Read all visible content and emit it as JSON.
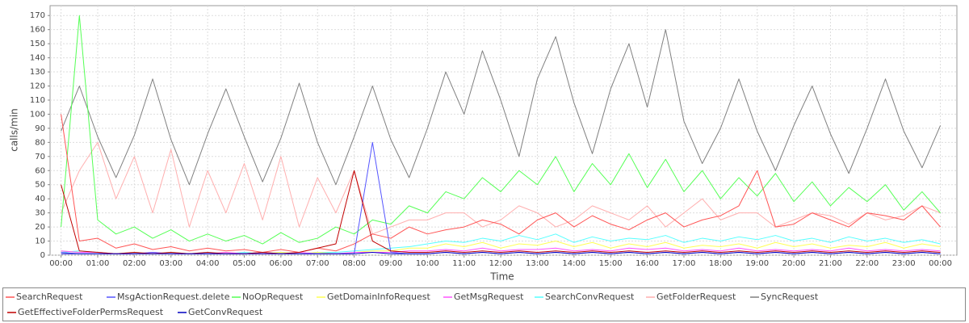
{
  "chart_data": {
    "type": "line",
    "x_label": "Time",
    "y_label": "calls/min",
    "grid": true,
    "legend_position": "bottom",
    "xlim": [
      -0.3,
      24.45
    ],
    "ylim": [
      0,
      177
    ],
    "yticks": [
      0,
      10,
      20,
      30,
      40,
      50,
      60,
      70,
      80,
      90,
      100,
      110,
      120,
      130,
      140,
      150,
      160,
      170
    ],
    "xticks": [
      {
        "value": 0,
        "label": "00:00"
      },
      {
        "value": 1,
        "label": "01:00"
      },
      {
        "value": 2,
        "label": "02:00"
      },
      {
        "value": 3,
        "label": "03:00"
      },
      {
        "value": 4,
        "label": "04:00"
      },
      {
        "value": 5,
        "label": "05:00"
      },
      {
        "value": 6,
        "label": "06:00"
      },
      {
        "value": 7,
        "label": "07:00"
      },
      {
        "value": 8,
        "label": "08:00"
      },
      {
        "value": 9,
        "label": "09:00"
      },
      {
        "value": 10,
        "label": "10:00"
      },
      {
        "value": 11,
        "label": "11:00"
      },
      {
        "value": 12,
        "label": "12:00"
      },
      {
        "value": 13,
        "label": "13:00"
      },
      {
        "value": 14,
        "label": "14:00"
      },
      {
        "value": 15,
        "label": "15:00"
      },
      {
        "value": 16,
        "label": "16:00"
      },
      {
        "value": 17,
        "label": "17:00"
      },
      {
        "value": 18,
        "label": "18:00"
      },
      {
        "value": 19,
        "label": "19:00"
      },
      {
        "value": 20,
        "label": "20:00"
      },
      {
        "value": 21,
        "label": "21:00"
      },
      {
        "value": 22,
        "label": "22:00"
      },
      {
        "value": 23,
        "label": "23:00"
      },
      {
        "value": 24,
        "label": "00:00"
      }
    ],
    "x": [
      0,
      0.5,
      1,
      1.5,
      2,
      2.5,
      3,
      3.5,
      4,
      4.5,
      5,
      5.5,
      6,
      6.5,
      7,
      7.5,
      8,
      8.5,
      9,
      9.5,
      10,
      10.5,
      11,
      11.5,
      12,
      12.5,
      13,
      13.5,
      14,
      14.5,
      15,
      15.5,
      16,
      16.5,
      17,
      17.5,
      18,
      18.5,
      19,
      19.5,
      20,
      20.5,
      21,
      21.5,
      22,
      22.5,
      23,
      23.5,
      24
    ],
    "series": [
      {
        "name": "SyncRequest",
        "color": "#808080",
        "values": [
          88,
          120,
          84,
          55,
          85,
          125,
          82,
          50,
          86,
          118,
          84,
          52,
          83,
          122,
          80,
          50,
          84,
          120,
          82,
          55,
          90,
          130,
          100,
          145,
          110,
          70,
          125,
          155,
          108,
          72,
          118,
          150,
          105,
          160,
          95,
          65,
          90,
          125,
          88,
          60,
          92,
          120,
          86,
          58,
          90,
          125,
          88,
          62,
          92
        ]
      },
      {
        "name": "GetFolderRequest",
        "color": "#ffafaf",
        "values": [
          30,
          60,
          80,
          40,
          70,
          30,
          75,
          20,
          60,
          30,
          65,
          25,
          70,
          20,
          55,
          30,
          60,
          15,
          20,
          25,
          25,
          30,
          30,
          20,
          25,
          35,
          30,
          20,
          25,
          35,
          30,
          25,
          35,
          20,
          30,
          40,
          25,
          30,
          30,
          20,
          25,
          30,
          28,
          22,
          30,
          25,
          28,
          35,
          30
        ]
      },
      {
        "name": "NoOpRequest",
        "color": "#55ff55",
        "values": [
          20,
          170,
          25,
          15,
          20,
          12,
          18,
          10,
          15,
          10,
          14,
          8,
          16,
          9,
          12,
          20,
          15,
          25,
          22,
          35,
          30,
          45,
          40,
          55,
          45,
          60,
          50,
          70,
          45,
          65,
          50,
          72,
          48,
          68,
          45,
          60,
          40,
          55,
          42,
          58,
          38,
          52,
          35,
          48,
          38,
          50,
          32,
          45,
          30
        ]
      },
      {
        "name": "SearchRequest",
        "color": "#ff5555",
        "values": [
          100,
          10,
          12,
          5,
          8,
          4,
          6,
          3,
          5,
          3,
          4,
          2,
          4,
          2,
          5,
          3,
          8,
          15,
          12,
          20,
          15,
          18,
          20,
          25,
          22,
          15,
          25,
          30,
          20,
          28,
          22,
          18,
          25,
          30,
          20,
          25,
          28,
          35,
          60,
          20,
          22,
          30,
          25,
          20,
          30,
          28,
          25,
          35,
          20
        ]
      },
      {
        "name": "SearchConvRequest",
        "color": "#55ffff",
        "values": [
          2,
          3,
          2,
          1,
          2,
          1,
          2,
          1,
          2,
          1,
          2,
          1,
          2,
          1,
          2,
          2,
          3,
          4,
          5,
          6,
          8,
          10,
          9,
          12,
          10,
          14,
          11,
          15,
          9,
          13,
          10,
          12,
          11,
          14,
          9,
          12,
          10,
          13,
          11,
          14,
          10,
          12,
          9,
          13,
          10,
          12,
          9,
          11,
          8
        ]
      },
      {
        "name": "GetDomainInfoRequest",
        "color": "#ffff55",
        "values": [
          3,
          2,
          2,
          1,
          2,
          1,
          2,
          1,
          1,
          2,
          1,
          1,
          2,
          1,
          2,
          1,
          2,
          3,
          3,
          5,
          5,
          8,
          6,
          9,
          5,
          8,
          7,
          10,
          6,
          9,
          5,
          8,
          6,
          9,
          5,
          7,
          6,
          8,
          5,
          9,
          6,
          8,
          5,
          7,
          6,
          9,
          5,
          8,
          6
        ]
      },
      {
        "name": "GetMsgRequest",
        "color": "#ff55ff",
        "values": [
          3,
          2,
          2,
          1,
          1,
          2,
          1,
          1,
          1,
          2,
          1,
          1,
          1,
          2,
          1,
          1,
          2,
          2,
          2,
          3,
          3,
          4,
          3,
          5,
          3,
          4,
          4,
          5,
          3,
          4,
          3,
          5,
          4,
          5,
          3,
          4,
          3,
          5,
          3,
          4,
          3,
          4,
          3,
          5,
          3,
          4,
          3,
          4,
          3
        ]
      },
      {
        "name": "MsgActionRequest.delete",
        "color": "#5555ff",
        "values": [
          2,
          1,
          1,
          1,
          1,
          2,
          1,
          1,
          1,
          1,
          1,
          2,
          1,
          1,
          1,
          1,
          1,
          80,
          2,
          1,
          1,
          2,
          1,
          2,
          1,
          2,
          1,
          2,
          1,
          2,
          1,
          2,
          1,
          2,
          1,
          2,
          1,
          2,
          1,
          2,
          1,
          2,
          1,
          2,
          1,
          2,
          1,
          2,
          1
        ]
      },
      {
        "name": "GetEffectiveFolderPermsRequest",
        "color": "#c00000",
        "values": [
          50,
          3,
          2,
          1,
          2,
          1,
          2,
          1,
          2,
          1,
          1,
          2,
          1,
          2,
          5,
          8,
          60,
          10,
          3,
          2,
          2,
          3,
          2,
          3,
          2,
          3,
          2,
          3,
          2,
          3,
          2,
          3,
          2,
          3,
          2,
          3,
          2,
          3,
          2,
          3,
          2,
          3,
          2,
          3,
          2,
          3,
          2,
          3,
          2
        ]
      },
      {
        "name": "GetConvRequest",
        "color": "#0000c0",
        "values": [
          1,
          1,
          1,
          1,
          1,
          1,
          1,
          1,
          1,
          1,
          1,
          1,
          1,
          1,
          1,
          1,
          1,
          2,
          1,
          1,
          1,
          2,
          1,
          2,
          1,
          2,
          1,
          2,
          1,
          2,
          1,
          2,
          1,
          2,
          1,
          2,
          1,
          2,
          1,
          2,
          1,
          2,
          1,
          2,
          1,
          2,
          1,
          2,
          1
        ]
      }
    ]
  }
}
